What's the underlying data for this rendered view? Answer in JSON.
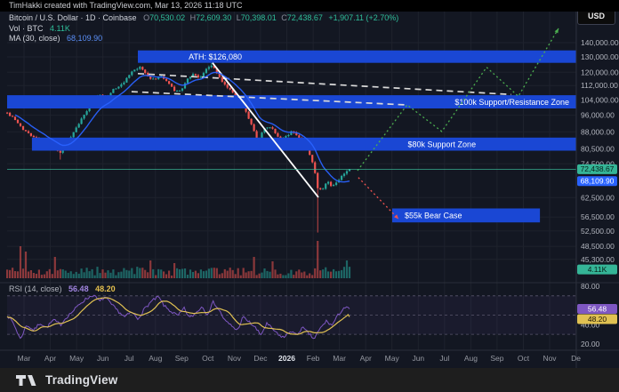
{
  "topbar": {
    "attribution": "TimHakki created with TradingView.com, Mar 13, 2026 11:18 UTC"
  },
  "currency_button": "USD",
  "legend": {
    "symbol_line": "Bitcoin / U.S. Dollar · 1D · Coinbase",
    "ohlc": {
      "o_label": "O",
      "o": "70,530.02",
      "h_label": "H",
      "h": "72,609.30",
      "l_label": "L",
      "l": "70,398.01",
      "c_label": "C",
      "c": "72,438.67",
      "change": "+1,907.11 (+2.70%)"
    },
    "volume_label": "Vol · BTC",
    "volume_value": "4.11K",
    "ma_label": "MA (30, close)",
    "ma_value": "68,109.90"
  },
  "rsi_legend": {
    "label": "RSI (14, close)",
    "rsi_value": "56.48",
    "ma_value": "48.20"
  },
  "footer": {
    "brand": "TradingView"
  },
  "colors": {
    "up": "#26a69a",
    "down": "#ef5350",
    "ma_blue": "#2962ff",
    "zone_blue": "#1a47d4",
    "grid": "#1e222d",
    "separator": "#2a2e39",
    "axis_text": "#b2b5be",
    "month_text": "#9598a1",
    "white_line": "#ffffff",
    "dashed_white": "#d9d9d9",
    "green_projection": "#4caf50",
    "red_projection": "#ef5350",
    "last_price_line": "#3cbf9b",
    "rsi_purple": "#7e57c2",
    "rsi_yellow": "#e0c152",
    "rsi_level": "#6b667e",
    "badge_up_bg": "#35b597",
    "badge_up_text": "#07221b",
    "badge_blue_bg": "#2962ff",
    "badge_blue_text": "#ffffff",
    "badge_purple_bg": "#7e57c2",
    "badge_yellow_bg": "#e0c152",
    "bold_month_text": "#dfe3ea"
  },
  "chart_data": {
    "type": "candlestick",
    "title": "Bitcoin / U.S. Dollar · 1D · Coinbase",
    "last_price": 72438.67,
    "ma30_last": 68109.9,
    "scale": "log",
    "price_axis_ticks": [
      {
        "v": 140000,
        "label": "140,000.00"
      },
      {
        "v": 130000,
        "label": "130,000.00"
      },
      {
        "v": 120000,
        "label": "120,000.00"
      },
      {
        "v": 112000,
        "label": "112,000.00"
      },
      {
        "v": 104000,
        "label": "104,000.00"
      },
      {
        "v": 96000,
        "label": "96,000.00"
      },
      {
        "v": 88000,
        "label": "88,000.00"
      },
      {
        "v": 80500,
        "label": "80,500.00"
      },
      {
        "v": 74500,
        "label": "74,500.00"
      },
      {
        "v": 62500,
        "label": "62,500.00"
      },
      {
        "v": 56500,
        "label": "56,500.00"
      },
      {
        "v": 52500,
        "label": "52,500.00"
      },
      {
        "v": 48500,
        "label": "48,500.00"
      },
      {
        "v": 45300,
        "label": "45,300.00"
      }
    ],
    "time_axis_labels": [
      {
        "label": "Mar"
      },
      {
        "label": "Apr"
      },
      {
        "label": "May"
      },
      {
        "label": "Jun"
      },
      {
        "label": "Jul"
      },
      {
        "label": "Aug"
      },
      {
        "label": "Sep"
      },
      {
        "label": "Oct"
      },
      {
        "label": "Nov"
      },
      {
        "label": "Dec"
      },
      {
        "label": "2026",
        "bold": true
      },
      {
        "label": "Feb"
      },
      {
        "label": "Mar"
      },
      {
        "label": "Apr"
      },
      {
        "label": "May"
      },
      {
        "label": "Jun"
      },
      {
        "label": "Jul"
      },
      {
        "label": "Aug"
      },
      {
        "label": "Sep"
      },
      {
        "label": "Oct"
      },
      {
        "label": "Nov"
      },
      {
        "label": "De"
      }
    ],
    "price_anchors": [
      [
        -0.64,
        97100
      ],
      [
        -0.41,
        94500
      ],
      [
        -0.07,
        89400
      ],
      [
        0.27,
        86600
      ],
      [
        0.61,
        84200
      ],
      [
        0.95,
        81600
      ],
      [
        1.39,
        79000
      ],
      [
        1.73,
        84200
      ],
      [
        2.06,
        91500
      ],
      [
        2.37,
        98100
      ],
      [
        2.64,
        104200
      ],
      [
        2.88,
        107200
      ],
      [
        3.15,
        105200
      ],
      [
        3.38,
        109700
      ],
      [
        3.66,
        111700
      ],
      [
        3.93,
        116500
      ],
      [
        4.16,
        120900
      ],
      [
        4.43,
        123200
      ],
      [
        4.67,
        118200
      ],
      [
        4.91,
        115500
      ],
      [
        5.18,
        117600
      ],
      [
        5.45,
        114400
      ],
      [
        5.75,
        108700
      ],
      [
        6.02,
        110200
      ],
      [
        6.26,
        117100
      ],
      [
        6.46,
        119200
      ],
      [
        6.7,
        116500
      ],
      [
        6.94,
        122000
      ],
      [
        7.17,
        125000
      ],
      [
        7.38,
        118200
      ],
      [
        7.61,
        112800
      ],
      [
        7.82,
        110200
      ],
      [
        8.02,
        106200
      ],
      [
        8.22,
        102800
      ],
      [
        8.43,
        98100
      ],
      [
        8.66,
        91500
      ],
      [
        8.9,
        83400
      ],
      [
        9.14,
        89400
      ],
      [
        9.34,
        90700
      ],
      [
        9.58,
        87400
      ],
      [
        9.78,
        84200
      ],
      [
        9.98,
        85800
      ],
      [
        10.19,
        88200
      ],
      [
        10.39,
        86600
      ],
      [
        10.59,
        83100
      ],
      [
        10.8,
        79700
      ],
      [
        11.0,
        74400
      ],
      [
        11.2,
        64800
      ],
      [
        11.37,
        65700
      ],
      [
        11.54,
        68500
      ],
      [
        11.71,
        66300
      ],
      [
        11.88,
        67500
      ],
      [
        12.05,
        69800
      ],
      [
        12.22,
        70700
      ],
      [
        12.39,
        72438.67
      ]
    ],
    "wick_events": [
      {
        "m": 1.39,
        "low": 76200
      },
      {
        "m": 7.17,
        "high": 126080
      },
      {
        "m": 11.2,
        "low": 52100
      }
    ],
    "zones": [
      {
        "label": "ATH: $126,080",
        "price_top": 134500,
        "price_bottom": 126080,
        "m_start": 4.33,
        "m_end": null,
        "label_anchor": "middle",
        "label_m": 7.28
      },
      {
        "label": "$100k Support/Resistance Zone",
        "price_top": 106500,
        "price_bottom": 99400,
        "m_start": null,
        "m_end": null,
        "label_anchor": "end",
        "label_m": 20.7
      },
      {
        "label": "$80k Support Zone",
        "price_top": 85400,
        "price_bottom": 79800,
        "m_start": 0.3,
        "m_end": null,
        "label_anchor": "middle",
        "label_m": 15.9
      },
      {
        "label": "$55k Bear Case",
        "price_top": 59050,
        "price_bottom": 54900,
        "m_start": 14.01,
        "m_end": 19.63,
        "label_anchor": "start",
        "label_m": 14.45
      }
    ],
    "lines": {
      "solid_white": [
        [
          7.17,
          126080
        ],
        [
          11.2,
          62600
        ]
      ],
      "dashed_upper": [
        [
          4.33,
          119200
        ],
        [
          18.54,
          106900
        ]
      ],
      "dashed_lower": [
        [
          4.09,
          108500
        ],
        [
          14.48,
          101300
        ]
      ],
      "green_projection": [
        [
          12.69,
          71900
        ],
        [
          14.58,
          101300
        ],
        [
          15.9,
          88200
        ],
        [
          17.6,
          123200
        ],
        [
          18.81,
          105900
        ],
        [
          20.34,
          150800
        ]
      ],
      "red_projection": [
        [
          12.72,
          69400
        ],
        [
          14.25,
          55900
        ]
      ]
    },
    "price_badges": [
      {
        "label": "72,438.67",
        "value": 72438.67,
        "type": "up"
      },
      {
        "label": "68,109.90",
        "value": 68109.9,
        "type": "blue"
      },
      {
        "label": "4.11K",
        "value": 43000,
        "type": "up"
      }
    ],
    "rsi": {
      "anchors": [
        [
          -0.64,
          50
        ],
        [
          -0.41,
          42
        ],
        [
          -0.14,
          25
        ],
        [
          0.1,
          40
        ],
        [
          0.37,
          34
        ],
        [
          0.61,
          42
        ],
        [
          0.85,
          37
        ],
        [
          1.12,
          45
        ],
        [
          1.39,
          40
        ],
        [
          1.62,
          48
        ],
        [
          1.9,
          55
        ],
        [
          2.13,
          62
        ],
        [
          2.37,
          67
        ],
        [
          2.64,
          71
        ],
        [
          2.88,
          64
        ],
        [
          3.08,
          69
        ],
        [
          3.32,
          61
        ],
        [
          3.59,
          54
        ],
        [
          3.82,
          48
        ],
        [
          4.1,
          53
        ],
        [
          4.33,
          46
        ],
        [
          4.6,
          57
        ],
        [
          4.84,
          64
        ],
        [
          5.11,
          69
        ],
        [
          5.35,
          59
        ],
        [
          5.58,
          54
        ],
        [
          5.86,
          49
        ],
        [
          6.09,
          57
        ],
        [
          6.3,
          47
        ],
        [
          6.53,
          52
        ],
        [
          6.77,
          59
        ],
        [
          6.97,
          51
        ],
        [
          7.21,
          64
        ],
        [
          7.45,
          54
        ],
        [
          7.65,
          44
        ],
        [
          7.89,
          39
        ],
        [
          8.12,
          34
        ],
        [
          8.33,
          48
        ],
        [
          8.56,
          43
        ],
        [
          8.8,
          37
        ],
        [
          9.0,
          29
        ],
        [
          9.24,
          41
        ],
        [
          9.48,
          35
        ],
        [
          9.68,
          29
        ],
        [
          9.92,
          27
        ],
        [
          10.15,
          34
        ],
        [
          10.36,
          29
        ],
        [
          10.59,
          37
        ],
        [
          10.83,
          31
        ],
        [
          11.03,
          25
        ],
        [
          11.27,
          36
        ],
        [
          11.51,
          44
        ],
        [
          11.71,
          39
        ],
        [
          11.95,
          50
        ],
        [
          12.18,
          58
        ],
        [
          12.39,
          56.48
        ]
      ],
      "last": 56.48,
      "ma_last": 48.2,
      "levels": [
        70,
        50,
        30
      ],
      "ticks": [
        {
          "v": 80,
          "label": "80.00"
        },
        {
          "v": 40,
          "label": "40.00"
        },
        {
          "v": 20,
          "label": "20.00"
        }
      ],
      "badges": [
        {
          "label": "56.48",
          "type": "purple"
        },
        {
          "label": "48.20",
          "type": "yellow"
        }
      ]
    },
    "volume_spikes": [
      [
        -0.17,
        36
      ],
      [
        0.1,
        30
      ],
      [
        1.22,
        24
      ],
      [
        4.77,
        20
      ],
      [
        5.75,
        17
      ],
      [
        8.73,
        24
      ],
      [
        9.5,
        19
      ],
      [
        11.2,
        42
      ],
      [
        12.3,
        20
      ]
    ]
  }
}
